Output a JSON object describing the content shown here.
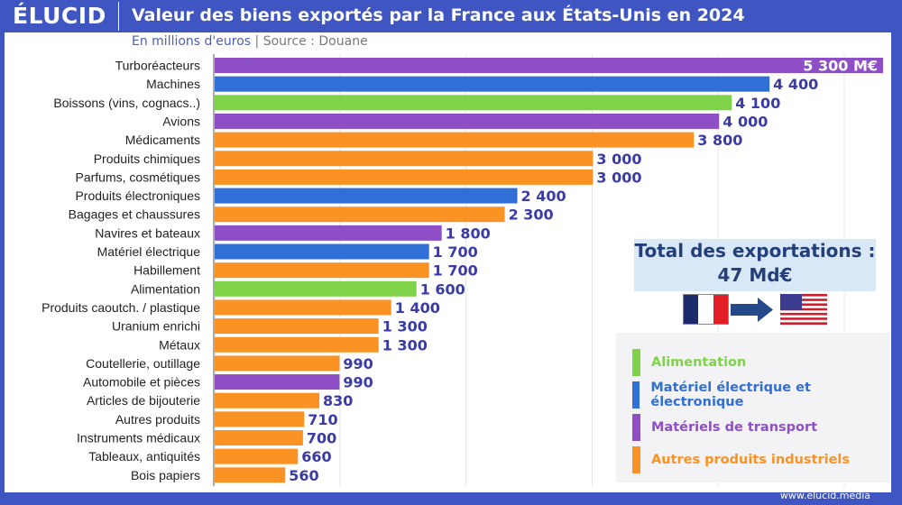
{
  "header": {
    "logo": "ÉLUCID",
    "title": "Valeur des biens exportés par la France aux États-Unis en 2024"
  },
  "subtitle": {
    "unit": "En millions d'euros",
    "separator": "|",
    "source": "Source : Douane"
  },
  "total": {
    "label": "Total des exportations :",
    "value": "47 Md€"
  },
  "footer": "www.elucid.media",
  "colors": {
    "Alimentation": "#7ed348",
    "Matériel électrique et électronique": "#2f6fd6",
    "Matériels de transport": "#8e4fc6",
    "Autres produits industriels": "#fb9224"
  },
  "chart_data": {
    "type": "bar",
    "orientation": "horizontal",
    "xlim": [
      0,
      5300
    ],
    "grid": true,
    "categories": [
      "Turboréacteurs",
      "Machines",
      "Boissons (vins, cognacs..)",
      "Avions",
      "Médicaments",
      "Produits chimiques",
      "Parfums, cosmétiques",
      "Produits électroniques",
      "Bagages et chaussures",
      "Navires et bateaux",
      "Matériel électrique",
      "Habillement",
      "Alimentation",
      "Produits caoutch. / plastique",
      "Uranium enrichi",
      "Métaux",
      "Coutellerie, outillage",
      "Automobile et pièces",
      "Articles de bijouterie",
      "Autres produits",
      "Instruments médicaux",
      "Tableaux, antiquités",
      "Bois papiers"
    ],
    "values": [
      5300,
      4400,
      4100,
      4000,
      3800,
      3000,
      3000,
      2400,
      2300,
      1800,
      1700,
      1700,
      1600,
      1400,
      1300,
      1300,
      990,
      990,
      830,
      710,
      700,
      660,
      560
    ],
    "value_labels": [
      "5 300 M€",
      "4 400",
      "4 100",
      "4 000",
      "3 800",
      "3 000",
      "3 000",
      "2 400",
      "2 300",
      "1 800",
      "1 700",
      "1 700",
      "1 600",
      "1 400",
      "1 300",
      "1 300",
      "990",
      "990",
      "830",
      "710",
      "700",
      "660",
      "560"
    ],
    "groups": [
      "Matériels de transport",
      "Matériel électrique et électronique",
      "Alimentation",
      "Matériels de transport",
      "Autres produits industriels",
      "Autres produits industriels",
      "Autres produits industriels",
      "Matériel électrique et électronique",
      "Autres produits industriels",
      "Matériels de transport",
      "Matériel électrique et électronique",
      "Autres produits industriels",
      "Alimentation",
      "Autres produits industriels",
      "Autres produits industriels",
      "Autres produits industriels",
      "Autres produits industriels",
      "Matériels de transport",
      "Autres produits industriels",
      "Autres produits industriels",
      "Autres produits industriels",
      "Autres produits industriels",
      "Autres produits industriels"
    ],
    "legend": [
      "Alimentation",
      "Matériel électrique et électronique",
      "Matériels de transport",
      "Autres produits industriels"
    ],
    "legend_position": "bottom-right"
  }
}
